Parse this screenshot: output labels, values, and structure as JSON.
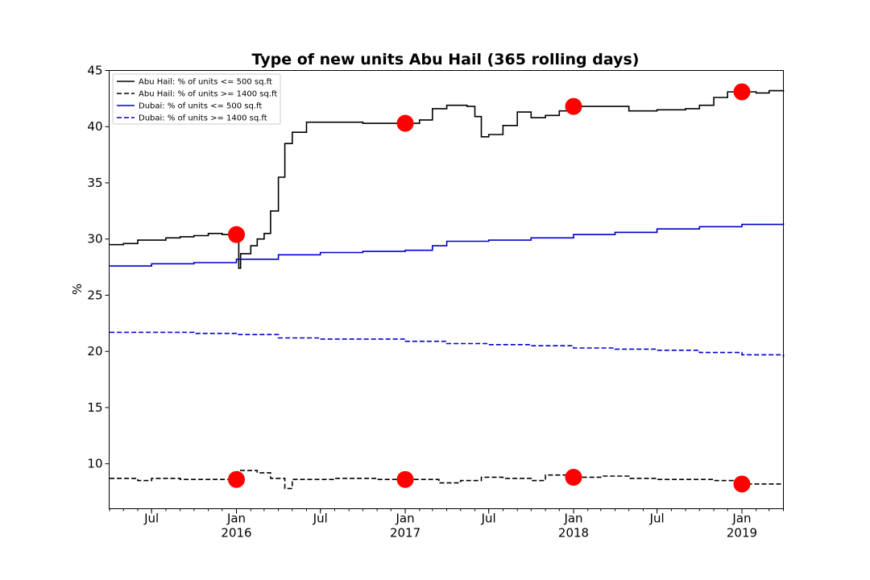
{
  "chart_data": {
    "type": "line",
    "title": "Type of new units Abu Hail (365 rolling days)",
    "xlabel": "",
    "ylabel": "%",
    "x_range": [
      "2015-03-31",
      "2019-04-01"
    ],
    "ylim": [
      6,
      45
    ],
    "y_ticks": [
      10,
      15,
      20,
      25,
      30,
      35,
      40,
      45
    ],
    "x_ticks": [
      {
        "date": "2015-07-01",
        "label": "Jul",
        "sublabel": ""
      },
      {
        "date": "2016-01-01",
        "label": "Jan",
        "sublabel": "2016"
      },
      {
        "date": "2016-07-01",
        "label": "Jul",
        "sublabel": ""
      },
      {
        "date": "2017-01-01",
        "label": "Jan",
        "sublabel": "2017"
      },
      {
        "date": "2017-07-01",
        "label": "Jul",
        "sublabel": ""
      },
      {
        "date": "2018-01-01",
        "label": "Jan",
        "sublabel": "2018"
      },
      {
        "date": "2018-07-01",
        "label": "Jul",
        "sublabel": ""
      },
      {
        "date": "2019-01-01",
        "label": "Jan",
        "sublabel": "2019"
      }
    ],
    "legend_position": "top-left",
    "grid": false,
    "series": [
      {
        "name": "Abu Hail: % of units <= 500 sq.ft",
        "color": "#000000",
        "dash": "solid",
        "points": [
          [
            "2015-04-01",
            29.5
          ],
          [
            "2015-05-01",
            29.6
          ],
          [
            "2015-06-01",
            29.9
          ],
          [
            "2015-07-01",
            29.9
          ],
          [
            "2015-08-01",
            30.1
          ],
          [
            "2015-09-01",
            30.2
          ],
          [
            "2015-10-01",
            30.3
          ],
          [
            "2015-11-01",
            30.5
          ],
          [
            "2015-12-01",
            30.4
          ],
          [
            "2016-01-03",
            30.4
          ],
          [
            "2016-01-06",
            27.4
          ],
          [
            "2016-01-10",
            28.7
          ],
          [
            "2016-02-01",
            29.4
          ],
          [
            "2016-02-15",
            30.0
          ],
          [
            "2016-03-01",
            30.5
          ],
          [
            "2016-03-15",
            32.5
          ],
          [
            "2016-04-01",
            35.5
          ],
          [
            "2016-04-15",
            38.5
          ],
          [
            "2016-05-01",
            39.5
          ],
          [
            "2016-06-01",
            40.4
          ],
          [
            "2016-08-01",
            40.4
          ],
          [
            "2016-10-01",
            40.3
          ],
          [
            "2017-01-01",
            40.3
          ],
          [
            "2017-02-01",
            40.6
          ],
          [
            "2017-03-01",
            41.6
          ],
          [
            "2017-04-01",
            41.9
          ],
          [
            "2017-05-15",
            41.8
          ],
          [
            "2017-06-01",
            40.9
          ],
          [
            "2017-06-15",
            39.1
          ],
          [
            "2017-07-01",
            39.3
          ],
          [
            "2017-08-01",
            40.1
          ],
          [
            "2017-09-01",
            41.3
          ],
          [
            "2017-10-01",
            40.8
          ],
          [
            "2017-11-01",
            41.0
          ],
          [
            "2017-12-01",
            41.4
          ],
          [
            "2018-01-01",
            41.8
          ],
          [
            "2018-03-01",
            41.8
          ],
          [
            "2018-05-01",
            41.4
          ],
          [
            "2018-07-01",
            41.5
          ],
          [
            "2018-09-01",
            41.6
          ],
          [
            "2018-10-01",
            41.9
          ],
          [
            "2018-11-01",
            42.6
          ],
          [
            "2018-12-01",
            43.1
          ],
          [
            "2019-01-01",
            43.1
          ],
          [
            "2019-02-01",
            43.0
          ],
          [
            "2019-03-01",
            43.2
          ],
          [
            "2019-04-01",
            43.1
          ]
        ]
      },
      {
        "name": "Abu Hail: % of units >= 1400 sq.ft",
        "color": "#000000",
        "dash": "dashed",
        "points": [
          [
            "2015-04-01",
            8.7
          ],
          [
            "2015-06-01",
            8.5
          ],
          [
            "2015-07-01",
            8.7
          ],
          [
            "2015-09-01",
            8.6
          ],
          [
            "2015-11-01",
            8.6
          ],
          [
            "2016-01-01",
            8.6
          ],
          [
            "2016-01-05",
            9.4
          ],
          [
            "2016-02-15",
            9.2
          ],
          [
            "2016-03-15",
            8.7
          ],
          [
            "2016-04-15",
            7.8
          ],
          [
            "2016-05-01",
            8.6
          ],
          [
            "2016-08-01",
            8.7
          ],
          [
            "2016-11-01",
            8.6
          ],
          [
            "2017-01-01",
            8.6
          ],
          [
            "2017-02-01",
            8.6
          ],
          [
            "2017-03-15",
            8.3
          ],
          [
            "2017-05-01",
            8.5
          ],
          [
            "2017-06-15",
            8.8
          ],
          [
            "2017-08-01",
            8.7
          ],
          [
            "2017-10-01",
            8.5
          ],
          [
            "2017-11-01",
            9.0
          ],
          [
            "2018-01-01",
            8.8
          ],
          [
            "2018-03-01",
            8.9
          ],
          [
            "2018-05-01",
            8.7
          ],
          [
            "2018-07-01",
            8.6
          ],
          [
            "2018-09-01",
            8.6
          ],
          [
            "2018-11-01",
            8.5
          ],
          [
            "2019-01-01",
            8.2
          ],
          [
            "2019-04-01",
            8.2
          ]
        ]
      },
      {
        "name": "Dubai: % of units <= 500 sq.ft",
        "color": "#0000cc",
        "dash": "solid",
        "points": [
          [
            "2015-04-01",
            27.6
          ],
          [
            "2015-07-01",
            27.8
          ],
          [
            "2015-10-01",
            27.9
          ],
          [
            "2016-01-01",
            28.2
          ],
          [
            "2016-04-01",
            28.6
          ],
          [
            "2016-07-01",
            28.8
          ],
          [
            "2016-10-01",
            28.9
          ],
          [
            "2017-01-01",
            29.0
          ],
          [
            "2017-03-01",
            29.4
          ],
          [
            "2017-04-01",
            29.8
          ],
          [
            "2017-07-01",
            29.9
          ],
          [
            "2017-10-01",
            30.1
          ],
          [
            "2018-01-01",
            30.4
          ],
          [
            "2018-04-01",
            30.6
          ],
          [
            "2018-07-01",
            30.9
          ],
          [
            "2018-10-01",
            31.1
          ],
          [
            "2019-01-01",
            31.3
          ],
          [
            "2019-04-01",
            31.4
          ]
        ]
      },
      {
        "name": "Dubai: % of units >= 1400 sq.ft",
        "color": "#0000cc",
        "dash": "dashed",
        "points": [
          [
            "2015-04-01",
            21.7
          ],
          [
            "2015-10-01",
            21.6
          ],
          [
            "2016-01-01",
            21.5
          ],
          [
            "2016-04-01",
            21.2
          ],
          [
            "2016-07-01",
            21.1
          ],
          [
            "2016-10-01",
            21.1
          ],
          [
            "2017-01-01",
            20.9
          ],
          [
            "2017-04-01",
            20.7
          ],
          [
            "2017-07-01",
            20.6
          ],
          [
            "2017-10-01",
            20.5
          ],
          [
            "2018-01-01",
            20.3
          ],
          [
            "2018-04-01",
            20.2
          ],
          [
            "2018-07-01",
            20.1
          ],
          [
            "2018-10-01",
            19.9
          ],
          [
            "2019-01-01",
            19.7
          ],
          [
            "2019-04-01",
            19.5
          ]
        ]
      }
    ],
    "highlight_points": [
      {
        "date": "2016-01-01",
        "value": 30.4,
        "color": "#ff0000"
      },
      {
        "date": "2017-01-01",
        "value": 40.3,
        "color": "#ff0000"
      },
      {
        "date": "2018-01-01",
        "value": 41.8,
        "color": "#ff0000"
      },
      {
        "date": "2019-01-01",
        "value": 43.1,
        "color": "#ff0000"
      },
      {
        "date": "2016-01-01",
        "value": 8.6,
        "color": "#ff0000"
      },
      {
        "date": "2017-01-01",
        "value": 8.6,
        "color": "#ff0000"
      },
      {
        "date": "2018-01-01",
        "value": 8.8,
        "color": "#ff0000"
      },
      {
        "date": "2019-01-01",
        "value": 8.2,
        "color": "#ff0000"
      }
    ]
  }
}
